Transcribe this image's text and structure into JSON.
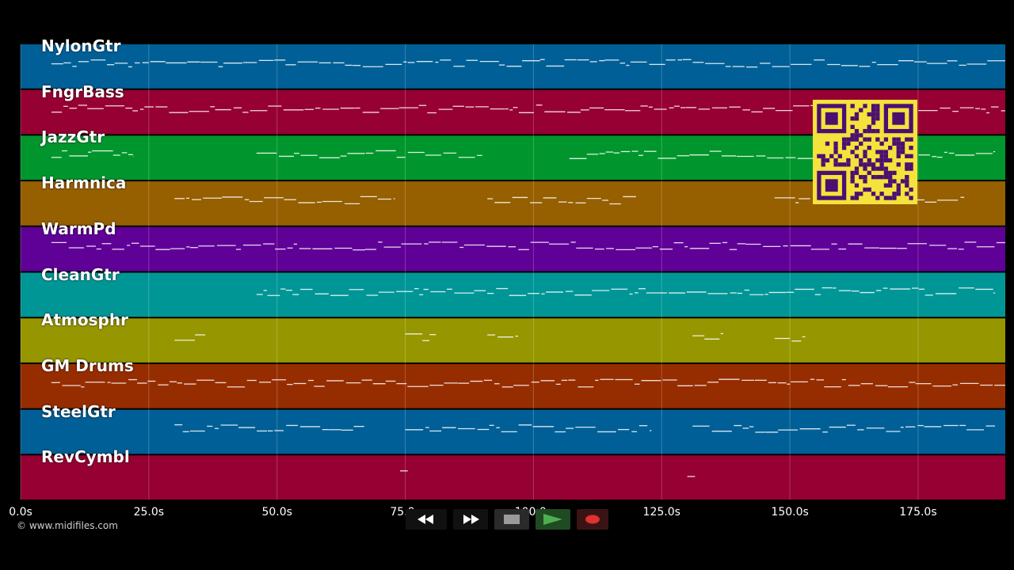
{
  "tracks": [
    {
      "name": "NylonGtr",
      "color": "#005f96"
    },
    {
      "name": "FngrBass",
      "color": "#960032"
    },
    {
      "name": "JazzGtr",
      "color": "#00962d"
    },
    {
      "name": "Harmnica",
      "color": "#965f00"
    },
    {
      "name": "WarmPd",
      "color": "#5f0096"
    },
    {
      "name": "CleanGtr",
      "color": "#009696"
    },
    {
      "name": "Atmosphr",
      "color": "#969600"
    },
    {
      "name": "GM Drums",
      "color": "#962d00"
    },
    {
      "name": "SteelGtr",
      "color": "#005f96"
    },
    {
      "name": "RevCymbl",
      "color": "#960032"
    }
  ],
  "timeline": {
    "ticks": [
      "0.0s",
      "25.0s",
      "50.0s",
      "75.0s",
      "100.0s",
      "125.0s",
      "150.0s",
      "175.0s"
    ],
    "tick_seconds": [
      0,
      25,
      50,
      75,
      100,
      125,
      150,
      175
    ],
    "max_seconds": 192
  },
  "copyright": "© www.midifiles.com",
  "transport": {
    "buttons": [
      {
        "name": "rewind-button",
        "icon": "rewind-icon"
      },
      {
        "name": "fast-forward-button",
        "icon": "fast-forward-icon"
      },
      {
        "name": "stop-button",
        "icon": "stop-icon"
      },
      {
        "name": "play-button",
        "icon": "play-icon"
      },
      {
        "name": "record-button",
        "icon": "record-icon"
      }
    ]
  },
  "qr_colors": {
    "fg": "#4a1070",
    "bg": "#f5e23c"
  }
}
